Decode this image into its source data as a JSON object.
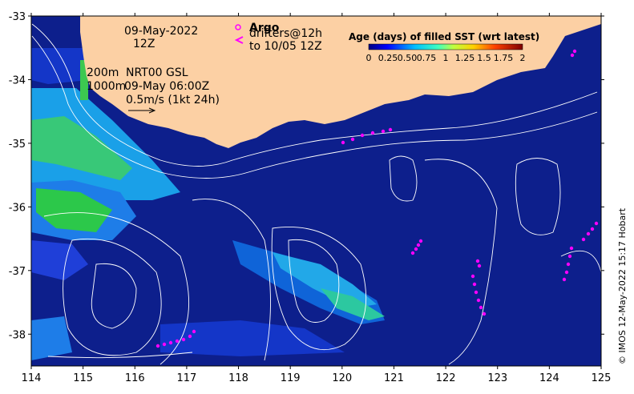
{
  "map": {
    "x_ticks": [
      "114",
      "115",
      "116",
      "117",
      "118",
      "119",
      "120",
      "121",
      "122",
      "123",
      "124",
      "125"
    ],
    "y_ticks": [
      "-33",
      "-34",
      "-35",
      "-36",
      "-37",
      "-38"
    ],
    "x_range": [
      114,
      125
    ],
    "y_range": [
      -38.5,
      -33
    ]
  },
  "annotations": {
    "date": "09-May-2022",
    "time": "12Z",
    "contour_200": "200m",
    "contour_1000": "1000m",
    "product": "NRT00 GSL",
    "product_time": "09-May 06:00Z",
    "scale_arrow": "0.5m/s (1kt 24h)",
    "argo_label": "Argo",
    "drifters_line1": "drifters@12h",
    "drifters_line2": "to 10/05 12Z"
  },
  "colorbar": {
    "title": "Age (days) of filled SST (wrt latest)",
    "ticks": [
      "0",
      "0.25",
      "0.50",
      "0.75",
      "1",
      "1.25",
      "1.5",
      "1.75",
      "2"
    ],
    "tick_values": [
      0,
      0.25,
      0.5,
      0.75,
      1,
      1.25,
      1.5,
      1.75,
      2
    ],
    "colors": [
      "#00007f",
      "#0000ff",
      "#007fff",
      "#00ffff",
      "#7fff7f",
      "#ffff00",
      "#ff7f00",
      "#ff0000",
      "#7f0000"
    ]
  },
  "credit": "© IMOS 12-May-2022 15:17 Hobart",
  "colors": {
    "ocean": "#0d1f8c",
    "land": "#fcd0a4",
    "drifter": "#ff00ff",
    "contour": "#ffffff"
  }
}
